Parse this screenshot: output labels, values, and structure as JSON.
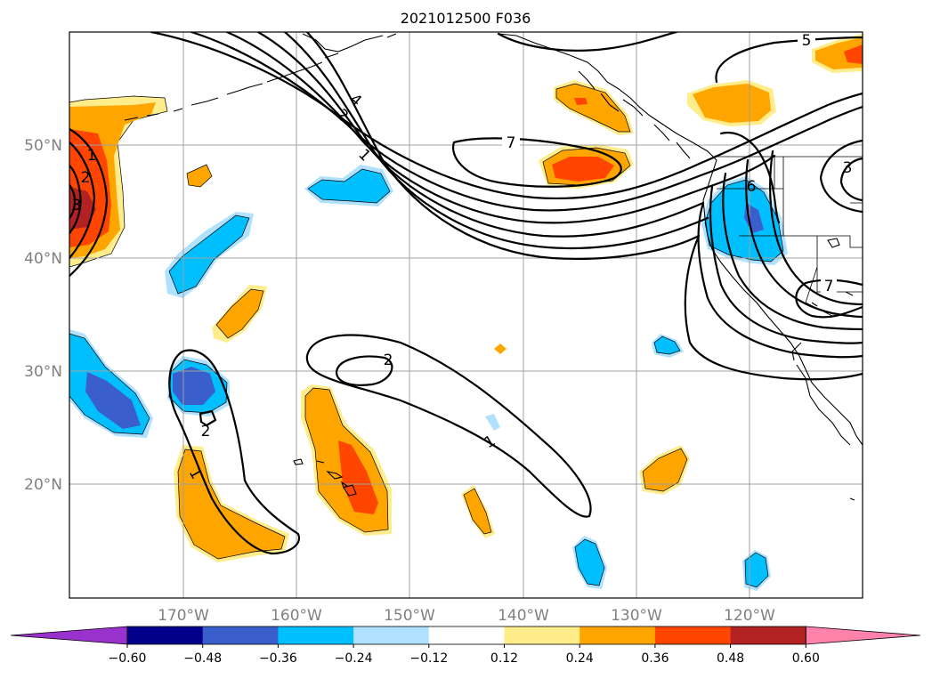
{
  "title": "2021012500 F036",
  "lat_labels": [
    "50°N",
    "40°N",
    "30°N",
    "20°N"
  ],
  "lon_labels": [
    "170°W",
    "160°W",
    "150°W",
    "140°W",
    "130°W",
    "120°W"
  ],
  "contour_labels": [
    "7",
    "5",
    "4",
    "2",
    "1",
    "2",
    "3",
    "1",
    "6",
    "7",
    "3",
    "2",
    "1",
    "2",
    "1"
  ],
  "colorbar": {
    "ticks": [
      "−0.60",
      "−0.48",
      "−0.36",
      "−0.24",
      "−0.12",
      "0.12",
      "0.24",
      "0.36",
      "0.48",
      "0.60"
    ],
    "colors": [
      "#9932cc",
      "#00008b",
      "#3a5fcd",
      "#00bfff",
      "#b0e2ff",
      "#ffffff",
      "#ffec8b",
      "#ffa500",
      "#ff4500",
      "#b22222",
      "#ff82ab"
    ]
  },
  "field_colors": {
    "neg_light": "#b0e2ff",
    "neg_mid": "#00bfff",
    "neg_strong": "#3a5fcd",
    "neg_max": "#00008b",
    "pos_light": "#ffec8b",
    "pos_mid": "#ffa500",
    "pos_strong": "#ff4500",
    "pos_max": "#b22222"
  }
}
